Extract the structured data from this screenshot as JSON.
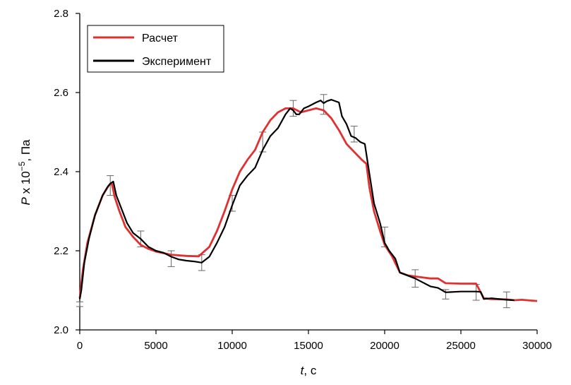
{
  "chart_data": {
    "type": "line",
    "xlabel_var": "t",
    "xlabel_unit": ", с",
    "ylabel_var": "P",
    "ylabel_rest": " x 10",
    "ylabel_exp": "−5",
    "ylabel_unit": ", Па",
    "xlim": [
      0,
      30000
    ],
    "ylim": [
      2.0,
      2.8
    ],
    "x_ticks": [
      0,
      5000,
      10000,
      15000,
      20000,
      25000,
      30000
    ],
    "x_tick_labels": [
      "0",
      "5000",
      "10000",
      "15000",
      "20000",
      "25000",
      "30000"
    ],
    "y_ticks": [
      2.0,
      2.2,
      2.4,
      2.6,
      2.8
    ],
    "y_tick_labels": [
      "2.0",
      "2.2",
      "2.4",
      "2.6",
      "2.8"
    ],
    "grid": false,
    "legend_position": "top-left",
    "series": [
      {
        "name": "Расчет",
        "color": "#e03030",
        "points": [
          [
            0,
            2.08
          ],
          [
            200,
            2.15
          ],
          [
            500,
            2.22
          ],
          [
            1000,
            2.29
          ],
          [
            1500,
            2.34
          ],
          [
            1900,
            2.365
          ],
          [
            2100,
            2.37
          ],
          [
            2300,
            2.335
          ],
          [
            2600,
            2.3
          ],
          [
            3000,
            2.26
          ],
          [
            3500,
            2.235
          ],
          [
            4000,
            2.215
          ],
          [
            4500,
            2.205
          ],
          [
            5000,
            2.198
          ],
          [
            6000,
            2.19
          ],
          [
            7000,
            2.187
          ],
          [
            7800,
            2.186
          ],
          [
            8500,
            2.21
          ],
          [
            9000,
            2.25
          ],
          [
            9500,
            2.3
          ],
          [
            10000,
            2.355
          ],
          [
            10500,
            2.4
          ],
          [
            11000,
            2.43
          ],
          [
            11500,
            2.455
          ],
          [
            12000,
            2.5
          ],
          [
            12500,
            2.53
          ],
          [
            13000,
            2.55
          ],
          [
            13500,
            2.56
          ],
          [
            14000,
            2.56
          ],
          [
            14500,
            2.55
          ],
          [
            15000,
            2.555
          ],
          [
            15500,
            2.56
          ],
          [
            16000,
            2.555
          ],
          [
            16500,
            2.535
          ],
          [
            17000,
            2.505
          ],
          [
            17500,
            2.47
          ],
          [
            18000,
            2.45
          ],
          [
            18500,
            2.43
          ],
          [
            18800,
            2.42
          ],
          [
            19000,
            2.36
          ],
          [
            19300,
            2.3
          ],
          [
            19700,
            2.25
          ],
          [
            20000,
            2.215
          ],
          [
            20500,
            2.185
          ],
          [
            21000,
            2.145
          ],
          [
            21500,
            2.138
          ],
          [
            22000,
            2.135
          ],
          [
            23000,
            2.13
          ],
          [
            23500,
            2.13
          ],
          [
            24000,
            2.118
          ],
          [
            25000,
            2.117
          ],
          [
            26000,
            2.117
          ],
          [
            26500,
            2.08
          ],
          [
            27000,
            2.078
          ],
          [
            28000,
            2.077
          ],
          [
            28500,
            2.075
          ],
          [
            29000,
            2.076
          ],
          [
            30000,
            2.073
          ]
        ]
      },
      {
        "name": "Эксперимент",
        "color": "#000000",
        "points": [
          [
            0,
            2.078
          ],
          [
            100,
            2.1
          ],
          [
            300,
            2.17
          ],
          [
            600,
            2.23
          ],
          [
            1000,
            2.29
          ],
          [
            1500,
            2.34
          ],
          [
            1800,
            2.36
          ],
          [
            2000,
            2.37
          ],
          [
            2200,
            2.375
          ],
          [
            2400,
            2.34
          ],
          [
            2800,
            2.3
          ],
          [
            3100,
            2.27
          ],
          [
            3500,
            2.245
          ],
          [
            4000,
            2.23
          ],
          [
            4500,
            2.21
          ],
          [
            5000,
            2.2
          ],
          [
            5500,
            2.195
          ],
          [
            6000,
            2.185
          ],
          [
            6500,
            2.178
          ],
          [
            7000,
            2.175
          ],
          [
            7500,
            2.173
          ],
          [
            8000,
            2.17
          ],
          [
            8500,
            2.185
          ],
          [
            9000,
            2.22
          ],
          [
            9500,
            2.26
          ],
          [
            10000,
            2.315
          ],
          [
            10500,
            2.365
          ],
          [
            11000,
            2.39
          ],
          [
            11500,
            2.41
          ],
          [
            12000,
            2.455
          ],
          [
            12500,
            2.49
          ],
          [
            13000,
            2.51
          ],
          [
            13500,
            2.545
          ],
          [
            13800,
            2.56
          ],
          [
            14000,
            2.555
          ],
          [
            14200,
            2.545
          ],
          [
            14400,
            2.545
          ],
          [
            14700,
            2.56
          ],
          [
            15000,
            2.565
          ],
          [
            15500,
            2.575
          ],
          [
            15800,
            2.58
          ],
          [
            16000,
            2.573
          ],
          [
            16200,
            2.578
          ],
          [
            16500,
            2.582
          ],
          [
            17000,
            2.575
          ],
          [
            17200,
            2.54
          ],
          [
            17500,
            2.52
          ],
          [
            17800,
            2.49
          ],
          [
            18100,
            2.485
          ],
          [
            18400,
            2.475
          ],
          [
            18700,
            2.47
          ],
          [
            18900,
            2.42
          ],
          [
            19300,
            2.32
          ],
          [
            19700,
            2.27
          ],
          [
            20000,
            2.22
          ],
          [
            20300,
            2.2
          ],
          [
            20700,
            2.18
          ],
          [
            21000,
            2.145
          ],
          [
            22000,
            2.13
          ],
          [
            22500,
            2.12
          ],
          [
            23000,
            2.11
          ],
          [
            23500,
            2.106
          ],
          [
            24000,
            2.095
          ],
          [
            25000,
            2.097
          ],
          [
            26000,
            2.097
          ],
          [
            26300,
            2.096
          ],
          [
            26500,
            2.078
          ],
          [
            27000,
            2.08
          ],
          [
            28000,
            2.076
          ],
          [
            28500,
            2.075
          ]
        ]
      }
    ],
    "error_bars": [
      {
        "x": 0,
        "y": 2.065,
        "half": 0.006
      },
      {
        "x": 2000,
        "y": 2.365,
        "half": 0.025
      },
      {
        "x": 4000,
        "y": 2.23,
        "half": 0.02
      },
      {
        "x": 6000,
        "y": 2.18,
        "half": 0.02
      },
      {
        "x": 8000,
        "y": 2.17,
        "half": 0.02
      },
      {
        "x": 10000,
        "y": 2.32,
        "half": 0.02
      },
      {
        "x": 12000,
        "y": 2.475,
        "half": 0.025
      },
      {
        "x": 14000,
        "y": 2.56,
        "half": 0.02
      },
      {
        "x": 16000,
        "y": 2.57,
        "half": 0.025
      },
      {
        "x": 18000,
        "y": 2.495,
        "half": 0.02
      },
      {
        "x": 20000,
        "y": 2.235,
        "half": 0.025
      },
      {
        "x": 22000,
        "y": 2.13,
        "half": 0.022
      },
      {
        "x": 24000,
        "y": 2.09,
        "half": 0.012
      },
      {
        "x": 26000,
        "y": 2.095,
        "half": 0.02
      },
      {
        "x": 28000,
        "y": 2.076,
        "half": 0.02
      }
    ]
  }
}
